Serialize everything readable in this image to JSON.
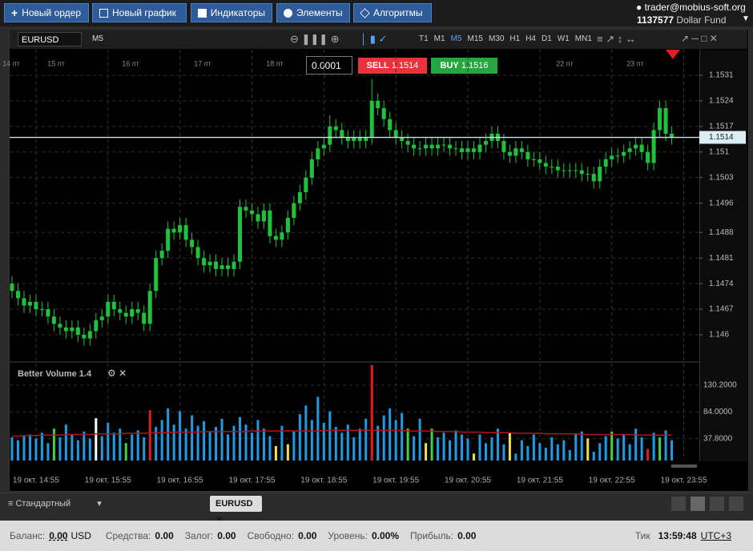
{
  "toolbar": {
    "buttons": [
      "Новый ордер",
      "Новый график",
      "Индикаторы",
      "Элементы",
      "Алгоритмы"
    ],
    "user": "trader@mobius-soft.org",
    "account_id": "1137577",
    "account_name": "Dollar Fund"
  },
  "chart_window": {
    "symbol": "EURUSD",
    "timeframe": "M5",
    "periods": [
      "T1",
      "M1",
      "M5",
      "M15",
      "M30",
      "H1",
      "H4",
      "D1",
      "W1",
      "MN1"
    ],
    "quantity": "0.0001",
    "sell_label": "SELL",
    "sell_price": "1.1514",
    "buy_label": "BUY",
    "buy_price": "1.1516"
  },
  "chart_data": {
    "type": "candlestick",
    "up_color": "#1fc23c",
    "down_color": "#1fc23c",
    "current_price": 1.1514,
    "top_labels": [
      "14 пт",
      "15 пт",
      "16 пт",
      "17 пт",
      "18 пт",
      "22 пт",
      "23 пт"
    ],
    "xlim": [
      873,
      1448
    ],
    "xticks": [
      {
        "value": 895,
        "label": "19 окт. 14:55"
      },
      {
        "value": 955,
        "label": "19 окт. 15:55"
      },
      {
        "value": 1015,
        "label": "19 окт. 16:55"
      },
      {
        "value": 1075,
        "label": "19 окт. 17:55"
      },
      {
        "value": 1135,
        "label": "19 окт. 18:55"
      },
      {
        "value": 1195,
        "label": "19 окт. 19:55"
      },
      {
        "value": 1255,
        "label": "19 окт. 20:55"
      },
      {
        "value": 1315,
        "label": "19 окт. 21:55"
      },
      {
        "value": 1375,
        "label": "19 окт. 22:55"
      },
      {
        "value": 1435,
        "label": "19 окт. 23:55"
      }
    ],
    "ylim": [
      1.1453,
      1.1538
    ],
    "yticks": [
      1.1531,
      1.1524,
      1.1517,
      1.151,
      1.1503,
      1.1496,
      1.1488,
      1.1481,
      1.1474,
      1.1467,
      1.146
    ],
    "x": [
      875,
      880,
      885,
      890,
      895,
      900,
      905,
      910,
      915,
      920,
      925,
      930,
      935,
      940,
      945,
      950,
      955,
      960,
      965,
      970,
      975,
      980,
      985,
      990,
      995,
      1000,
      1005,
      1010,
      1015,
      1020,
      1025,
      1030,
      1035,
      1040,
      1045,
      1050,
      1055,
      1060,
      1065,
      1070,
      1075,
      1080,
      1085,
      1090,
      1095,
      1100,
      1105,
      1110,
      1115,
      1120,
      1125,
      1130,
      1135,
      1140,
      1145,
      1150,
      1155,
      1160,
      1165,
      1170,
      1175,
      1180,
      1185,
      1190,
      1195,
      1200,
      1205,
      1210,
      1215,
      1220,
      1225,
      1230,
      1235,
      1240,
      1245,
      1250,
      1255,
      1260,
      1265,
      1270,
      1275,
      1280,
      1285,
      1290,
      1295,
      1300,
      1305,
      1310,
      1315,
      1320,
      1325,
      1330,
      1335,
      1340,
      1345,
      1350,
      1355,
      1360,
      1365,
      1370,
      1375,
      1380,
      1385,
      1390,
      1395,
      1400,
      1405,
      1410,
      1415,
      1420,
      1425
    ],
    "open": [
      1.1474,
      1.1472,
      1.147,
      1.1468,
      1.1469,
      1.1467,
      1.1467,
      1.1465,
      1.1463,
      1.1462,
      1.1461,
      1.1462,
      1.146,
      1.1459,
      1.1461,
      1.1464,
      1.1465,
      1.1469,
      1.1467,
      1.1466,
      1.1465,
      1.1467,
      1.1466,
      1.1463,
      1.1472,
      1.1481,
      1.1483,
      1.1489,
      1.1488,
      1.149,
      1.1486,
      1.1484,
      1.1481,
      1.1479,
      1.148,
      1.1478,
      1.1479,
      1.1478,
      1.148,
      1.1495,
      1.1494,
      1.1493,
      1.1491,
      1.1494,
      1.1487,
      1.1486,
      1.1488,
      1.1492,
      1.1496,
      1.1499,
      1.1503,
      1.1508,
      1.1511,
      1.1512,
      1.1517,
      1.1516,
      1.1514,
      1.1513,
      1.1514,
      1.1513,
      1.1514,
      1.1524,
      1.1522,
      1.1519,
      1.1516,
      1.1514,
      1.1513,
      1.1512,
      1.1511,
      1.1511,
      1.1512,
      1.1511,
      1.1512,
      1.1512,
      1.1511,
      1.1511,
      1.151,
      1.1511,
      1.151,
      1.1512,
      1.1513,
      1.1515,
      1.1513,
      1.151,
      1.1509,
      1.1511,
      1.151,
      1.1508,
      1.1508,
      1.1507,
      1.1506,
      1.1506,
      1.1505,
      1.1505,
      1.1505,
      1.1505,
      1.1504,
      1.1504,
      1.1502,
      1.1506,
      1.1508,
      1.1509,
      1.1509,
      1.151,
      1.1511,
      1.1512,
      1.151,
      1.1507,
      1.1516,
      1.1522,
      1.1515
    ],
    "high": [
      1.1476,
      1.1474,
      1.1472,
      1.1471,
      1.1471,
      1.1469,
      1.1469,
      1.1467,
      1.1465,
      1.1464,
      1.1464,
      1.1464,
      1.1462,
      1.1463,
      1.1466,
      1.1467,
      1.1471,
      1.1471,
      1.1469,
      1.1468,
      1.1469,
      1.1469,
      1.1468,
      1.1474,
      1.1483,
      1.1485,
      1.1491,
      1.1491,
      1.1492,
      1.1492,
      1.1488,
      1.1486,
      1.1483,
      1.1482,
      1.1482,
      1.1481,
      1.1481,
      1.1482,
      1.1497,
      1.1497,
      1.1496,
      1.1495,
      1.1496,
      1.1496,
      1.1489,
      1.149,
      1.1494,
      1.1498,
      1.1501,
      1.1505,
      1.151,
      1.1513,
      1.1514,
      1.152,
      1.1519,
      1.1518,
      1.1516,
      1.1516,
      1.1516,
      1.1516,
      1.153,
      1.1526,
      1.1524,
      1.1521,
      1.1518,
      1.1516,
      1.1515,
      1.1514,
      1.1513,
      1.1514,
      1.1514,
      1.1514,
      1.1514,
      1.1514,
      1.1513,
      1.1513,
      1.1513,
      1.1513,
      1.1514,
      1.1515,
      1.1517,
      1.1517,
      1.1515,
      1.1512,
      1.1513,
      1.1513,
      1.1512,
      1.151,
      1.151,
      1.1509,
      1.1508,
      1.1508,
      1.1507,
      1.1507,
      1.1507,
      1.1507,
      1.1506,
      1.1506,
      1.1508,
      1.151,
      1.1511,
      1.1511,
      1.1512,
      1.1513,
      1.1514,
      1.1514,
      1.1512,
      1.1518,
      1.1524,
      1.1524,
      1.1517
    ],
    "low": [
      1.147,
      1.1468,
      1.1466,
      1.1466,
      1.1465,
      1.1465,
      1.1463,
      1.1461,
      1.146,
      1.1459,
      1.1459,
      1.1458,
      1.1457,
      1.1457,
      1.1459,
      1.1462,
      1.1463,
      1.1465,
      1.1464,
      1.1463,
      1.1463,
      1.1464,
      1.1461,
      1.1461,
      1.147,
      1.1479,
      1.1481,
      1.1486,
      1.1486,
      1.1484,
      1.1482,
      1.1479,
      1.1477,
      1.1477,
      1.1476,
      1.1476,
      1.1476,
      1.1476,
      1.1478,
      1.1492,
      1.1491,
      1.1489,
      1.1489,
      1.1485,
      1.1484,
      1.1484,
      1.1486,
      1.149,
      1.1494,
      1.1497,
      1.1501,
      1.1506,
      1.1509,
      1.151,
      1.1514,
      1.1512,
      1.1511,
      1.1511,
      1.1511,
      1.1511,
      1.1512,
      1.152,
      1.1517,
      1.1514,
      1.1512,
      1.1511,
      1.151,
      1.1509,
      1.1509,
      1.1509,
      1.1509,
      1.1509,
      1.151,
      1.1509,
      1.1509,
      1.1508,
      1.1508,
      1.1508,
      1.1508,
      1.151,
      1.1511,
      1.1511,
      1.1508,
      1.1507,
      1.1507,
      1.1508,
      1.1506,
      1.1506,
      1.1505,
      1.1504,
      1.1504,
      1.1503,
      1.1503,
      1.1503,
      1.1503,
      1.1502,
      1.1502,
      1.15,
      1.15,
      1.1504,
      1.1506,
      1.1507,
      1.1507,
      1.1508,
      1.1509,
      1.1508,
      1.1505,
      1.1505,
      1.1514,
      1.1513,
      1.1512
    ],
    "close": [
      1.1472,
      1.147,
      1.1468,
      1.1469,
      1.1467,
      1.1467,
      1.1465,
      1.1463,
      1.1462,
      1.1461,
      1.1462,
      1.146,
      1.1459,
      1.1461,
      1.1464,
      1.1465,
      1.1469,
      1.1467,
      1.1466,
      1.1465,
      1.1467,
      1.1466,
      1.1463,
      1.1472,
      1.1481,
      1.1483,
      1.1489,
      1.1488,
      1.149,
      1.1486,
      1.1484,
      1.1481,
      1.1479,
      1.148,
      1.1478,
      1.1479,
      1.1478,
      1.148,
      1.1495,
      1.1494,
      1.1493,
      1.1491,
      1.1494,
      1.1487,
      1.1486,
      1.1488,
      1.1492,
      1.1496,
      1.1499,
      1.1503,
      1.1508,
      1.1511,
      1.1512,
      1.1517,
      1.1516,
      1.1514,
      1.1513,
      1.1514,
      1.1513,
      1.1514,
      1.1524,
      1.1522,
      1.1519,
      1.1516,
      1.1514,
      1.1513,
      1.1512,
      1.1511,
      1.1511,
      1.1512,
      1.1511,
      1.1512,
      1.1512,
      1.1511,
      1.1511,
      1.151,
      1.1511,
      1.151,
      1.1512,
      1.1513,
      1.1515,
      1.1513,
      1.151,
      1.1509,
      1.1511,
      1.151,
      1.1508,
      1.1508,
      1.1507,
      1.1506,
      1.1506,
      1.1505,
      1.1505,
      1.1505,
      1.1505,
      1.1504,
      1.1504,
      1.1502,
      1.1506,
      1.1508,
      1.1509,
      1.1509,
      1.151,
      1.1511,
      1.1512,
      1.151,
      1.1507,
      1.1516,
      1.1522,
      1.1515,
      1.1514
    ],
    "volume": {
      "title": "Better Volume 1.4",
      "ylim": [
        0,
        166
      ],
      "yticks": [
        {
          "value": 130.2,
          "label": "130.2000"
        },
        {
          "value": 84,
          "label": "84.0000"
        },
        {
          "value": 37.8,
          "label": "37.8000"
        }
      ],
      "values": [
        40,
        35,
        42,
        45,
        38,
        48,
        30,
        55,
        40,
        62,
        45,
        35,
        50,
        38,
        73,
        42,
        65,
        48,
        55,
        30,
        45,
        52,
        40,
        87,
        58,
        70,
        90,
        62,
        85,
        55,
        78,
        60,
        68,
        50,
        58,
        72,
        45,
        60,
        75,
        62,
        48,
        70,
        55,
        42,
        25,
        60,
        28,
        50,
        80,
        95,
        70,
        110,
        65,
        85,
        58,
        48,
        62,
        40,
        55,
        72,
        165,
        60,
        78,
        90,
        70,
        82,
        55,
        42,
        72,
        30,
        55,
        40,
        48,
        35,
        52,
        45,
        38,
        12,
        45,
        30,
        40,
        55,
        28,
        48,
        12,
        35,
        25,
        45,
        30,
        22,
        40,
        28,
        35,
        18,
        45,
        50,
        38,
        15,
        30,
        42,
        50,
        38,
        45,
        28,
        55,
        40,
        20,
        48,
        40,
        52,
        35
      ],
      "colors": [
        "#1c9ce4",
        "#1c9ce4",
        "#1c9ce4",
        "#1c9ce4",
        "#1c9ce4",
        "#1c9ce4",
        "#1c9ce4",
        "#3fd43f",
        "#1c9ce4",
        "#1c9ce4",
        "#1c9ce4",
        "#1c9ce4",
        "#1c9ce4",
        "#1c9ce4",
        "#ffffff",
        "#1c9ce4",
        "#1c9ce4",
        "#1c9ce4",
        "#1c9ce4",
        "#3fd43f",
        "#1c9ce4",
        "#1c9ce4",
        "#1c9ce4",
        "#e01e1e",
        "#1c9ce4",
        "#1c9ce4",
        "#1c9ce4",
        "#1c9ce4",
        "#1c9ce4",
        "#1c9ce4",
        "#1c9ce4",
        "#1c9ce4",
        "#1c9ce4",
        "#1c9ce4",
        "#1c9ce4",
        "#1c9ce4",
        "#1c9ce4",
        "#1c9ce4",
        "#1c9ce4",
        "#1c9ce4",
        "#1c9ce4",
        "#1c9ce4",
        "#1c9ce4",
        "#1c9ce4",
        "#f0e040",
        "#1c9ce4",
        "#f0e040",
        "#1c9ce4",
        "#1c9ce4",
        "#1c9ce4",
        "#1c9ce4",
        "#1c9ce4",
        "#1c9ce4",
        "#1c9ce4",
        "#1c9ce4",
        "#1c9ce4",
        "#1c9ce4",
        "#1c9ce4",
        "#1c9ce4",
        "#1c9ce4",
        "#e01e1e",
        "#1c9ce4",
        "#1c9ce4",
        "#1c9ce4",
        "#1c9ce4",
        "#1c9ce4",
        "#3fd43f",
        "#1c9ce4",
        "#1c9ce4",
        "#f0e040",
        "#3fd43f",
        "#1c9ce4",
        "#1c9ce4",
        "#1c9ce4",
        "#1c9ce4",
        "#1c9ce4",
        "#1c9ce4",
        "#f0e040",
        "#1c9ce4",
        "#1c9ce4",
        "#1c9ce4",
        "#1c9ce4",
        "#1c9ce4",
        "#f0e040",
        "#1c9ce4",
        "#1c9ce4",
        "#1c9ce4",
        "#1c9ce4",
        "#1c9ce4",
        "#1c9ce4",
        "#1c9ce4",
        "#1c9ce4",
        "#1c9ce4",
        "#1c9ce4",
        "#1c9ce4",
        "#1c9ce4",
        "#f0e040",
        "#1c9ce4",
        "#1c9ce4",
        "#1c9ce4",
        "#3fd43f",
        "#1c9ce4",
        "#1c9ce4",
        "#1c9ce4",
        "#1c9ce4",
        "#1c9ce4",
        "#e01e1e",
        "#1c9ce4",
        "#3fd43f",
        "#1c9ce4",
        "#1c9ce4"
      ],
      "ma_color": "#b01818",
      "ma": [
        42,
        42,
        43,
        43,
        43,
        44,
        44,
        44,
        44,
        45,
        45,
        45,
        45,
        45,
        46,
        46,
        46,
        46,
        46,
        47,
        47,
        47,
        47,
        48,
        48,
        48,
        48,
        49,
        49,
        49,
        49,
        49,
        50,
        50,
        50,
        50,
        50,
        50,
        50,
        50,
        51,
        51,
        51,
        51,
        51,
        51,
        51,
        51,
        51,
        51,
        51,
        51,
        52,
        52,
        52,
        52,
        52,
        52,
        52,
        52,
        52,
        52,
        52,
        52,
        52,
        52,
        51,
        51,
        51,
        51,
        51,
        50,
        50,
        50,
        50,
        49,
        49,
        49,
        49,
        48,
        48,
        48,
        48,
        48,
        47,
        47,
        47,
        47,
        47,
        46,
        46,
        46,
        46,
        46,
        46,
        45,
        45,
        45,
        45,
        45,
        45,
        45,
        45,
        45,
        44,
        44,
        44,
        44,
        44,
        44,
        44
      ]
    }
  },
  "bottom": {
    "template": "Стандартный",
    "tab": "EURUSD"
  },
  "status": {
    "items": [
      {
        "label": "Баланс:",
        "value": "0.00",
        "unit": "USD"
      },
      {
        "label": "Средства:",
        "value": "0.00"
      },
      {
        "label": "Залог:",
        "value": "0.00"
      },
      {
        "label": "Свободно:",
        "value": "0.00"
      },
      {
        "label": "Уровень:",
        "value": "0.00%"
      },
      {
        "label": "Прибыль:",
        "value": "0.00"
      }
    ],
    "tick_label": "Тик",
    "time": "13:59:48",
    "timezone": "UTC+3"
  }
}
